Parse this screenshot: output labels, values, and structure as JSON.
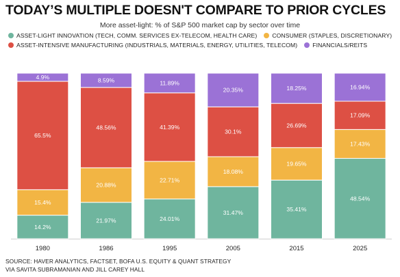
{
  "header": {
    "title": "TODAY’S MULTIPLE DOESN'T COMPARE TO PRIOR CYCLES",
    "subtitle": "More asset-light: % of S&P 500 market cap by sector over time"
  },
  "source": {
    "line1": "SOURCE: HAVER ANALYTICS, FACTSET, BOFA U.S. EQUITY & QUANT STRATEGY",
    "line2": "VIA SAVITA SUBRAMANIAN AND JILL CAREY HALL"
  },
  "colors": {
    "asset_light": "#6fb59e",
    "consumer": "#f2b544",
    "manufacturing": "#dd5044",
    "financials": "#9b72d6"
  },
  "chart_data": {
    "type": "bar",
    "stacked": true,
    "categories": [
      "1980",
      "1986",
      "1995",
      "2005",
      "2015",
      "2025"
    ],
    "ylim": [
      0,
      100
    ],
    "grid": false,
    "legend_position": "top",
    "series": [
      {
        "name": "ASSET-LIGHT INNOVATION (TECH, COMM. SERVICES EX-TELECOM, HEALTH CARE)",
        "key": "asset_light",
        "values": [
          14.2,
          21.97,
          24.01,
          31.47,
          35.41,
          48.54
        ],
        "labels": [
          "14.2%",
          "21.97%",
          "24.01%",
          "31.47%",
          "35.41%",
          "48.54%"
        ]
      },
      {
        "name": "CONSUMER (STAPLES, DISCRETIONARY)",
        "key": "consumer",
        "values": [
          15.4,
          20.88,
          22.71,
          18.08,
          19.65,
          17.43
        ],
        "labels": [
          "15.4%",
          "20.88%",
          "22.71%",
          "18.08%",
          "19.65%",
          "17.43%"
        ]
      },
      {
        "name": "ASSET-INTENSIVE MANUFACTURING (INDUSTRIALS, MATERIALS, ENERGY, UTILITIES, TELECOM)",
        "key": "manufacturing",
        "values": [
          65.5,
          48.56,
          41.39,
          30.1,
          26.69,
          17.09
        ],
        "labels": [
          "65.5%",
          "48.56%",
          "41.39%",
          "30.1%",
          "26.69%",
          "17.09%"
        ]
      },
      {
        "name": "FINANCIALS/REITS",
        "key": "financials",
        "values": [
          4.9,
          8.59,
          11.89,
          20.35,
          18.25,
          16.94
        ],
        "labels": [
          "4.9%",
          "8.59%",
          "11.89%",
          "20.35%",
          "18.25%",
          "16.94%"
        ]
      }
    ]
  }
}
